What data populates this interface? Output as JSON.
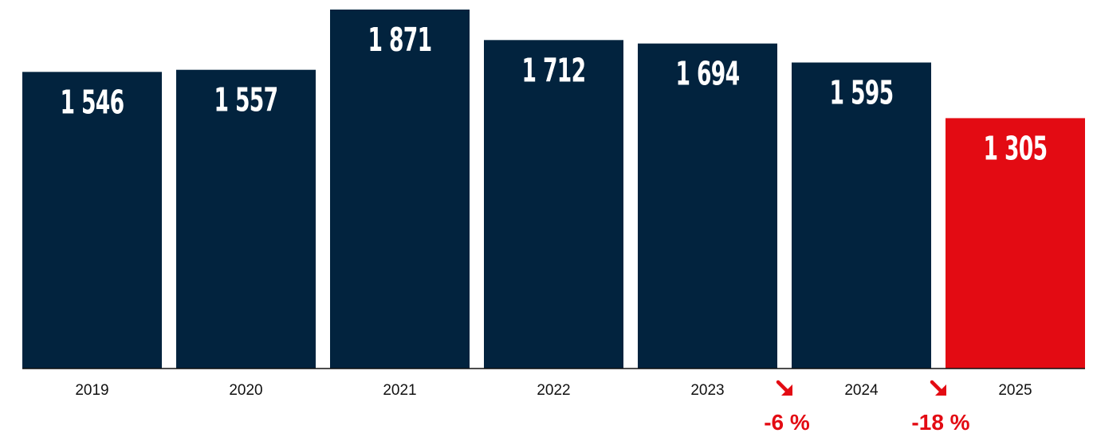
{
  "chart_data": {
    "type": "bar",
    "categories": [
      "2019",
      "2020",
      "2021",
      "2022",
      "2023",
      "2024",
      "2025"
    ],
    "values": [
      1546,
      1557,
      1871,
      1712,
      1694,
      1595,
      1305
    ],
    "value_labels": [
      "1 546",
      "1 557",
      "1 871",
      "1 712",
      "1 694",
      "1 595",
      "1 305"
    ],
    "title": "",
    "xlabel": "",
    "ylabel": "",
    "ylim": [
      0,
      1871
    ],
    "grid": false,
    "legend": "none",
    "colors": {
      "default": "#02233e",
      "highlight": "#e30b13",
      "axis": "#111111",
      "value_text": "#ffffff"
    },
    "highlight_index": 6,
    "annotations": [
      {
        "between": [
          "2023",
          "2024"
        ],
        "icon": "down-right-arrow-icon",
        "text": "-6 %"
      },
      {
        "between": [
          "2024",
          "2025"
        ],
        "icon": "down-right-arrow-icon",
        "text": "-18 %"
      }
    ]
  }
}
